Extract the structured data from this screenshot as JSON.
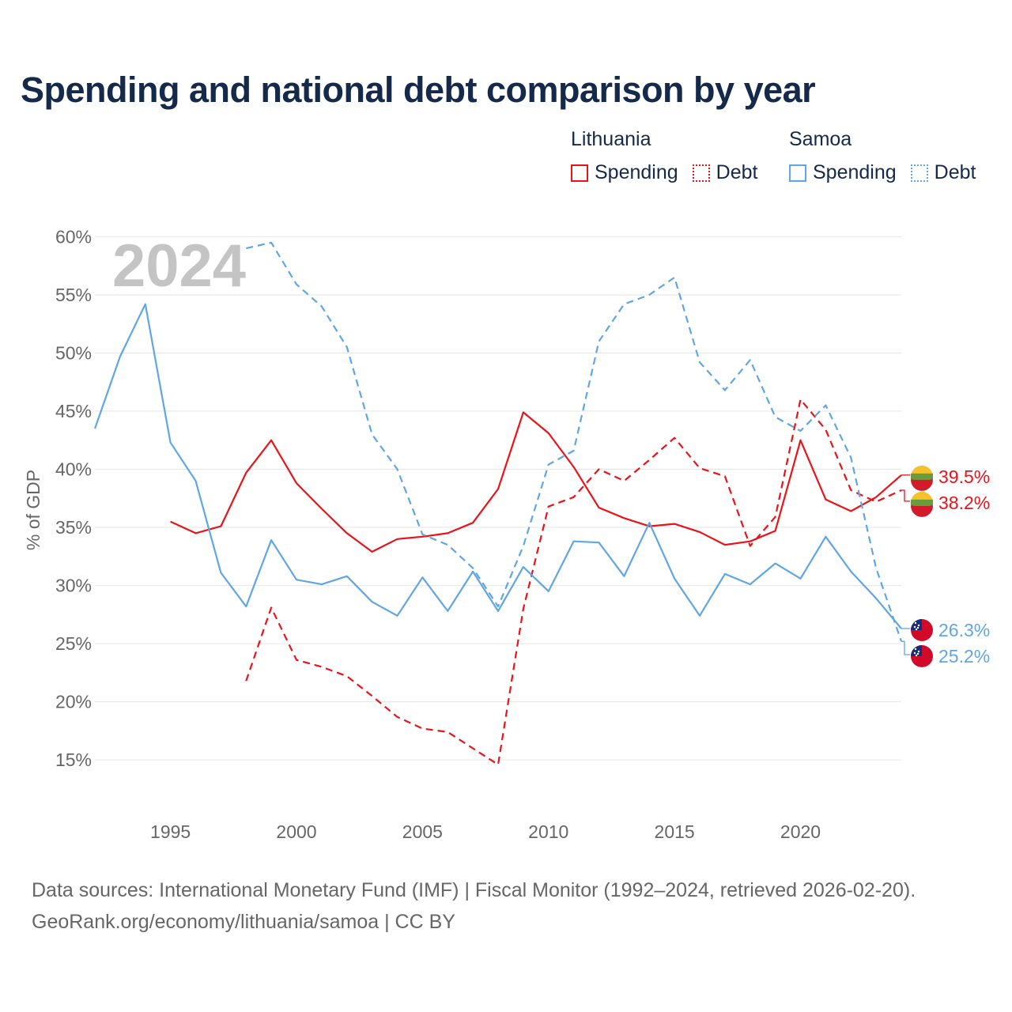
{
  "title": "Spending and national debt comparison by year",
  "legend": {
    "lithuania": {
      "country": "Lithuania",
      "spending": "Spending",
      "debt": "Debt"
    },
    "samoa": {
      "country": "Samoa",
      "spending": "Spending",
      "debt": "Debt"
    }
  },
  "footer": {
    "line1": "Data sources: International Monetary Fund (IMF) | Fiscal Monitor (1992–2024, retrieved 2026-02-20).",
    "line2": "GeoRank.org/economy/lithuania/samoa | CC BY"
  },
  "colors": {
    "lithuania": "#e8141a",
    "samoa": "#60a6e4",
    "grid": "#e6e6e6",
    "year_watermark": "#c4c4c4"
  },
  "chart_data": {
    "type": "line",
    "title": "Spending and national debt comparison by year",
    "ylabel": "% of GDP",
    "xlabel": "",
    "xlim": [
      1992,
      2024
    ],
    "ylim": [
      11,
      62
    ],
    "x_ticks": [
      1995,
      2000,
      2005,
      2010,
      2015,
      2020
    ],
    "y_ticks": [
      15,
      20,
      25,
      30,
      35,
      40,
      45,
      50,
      55,
      60
    ],
    "y_tick_labels": [
      "15%",
      "20%",
      "25%",
      "30%",
      "35%",
      "40%",
      "45%",
      "50%",
      "55%",
      "60%"
    ],
    "year_label": "2024",
    "series": [
      {
        "name": "Lithuania Spending",
        "country": "lithuania",
        "style": "solid",
        "x": [
          1995,
          1996,
          1997,
          1998,
          1999,
          2000,
          2001,
          2002,
          2003,
          2004,
          2005,
          2006,
          2007,
          2008,
          2009,
          2010,
          2011,
          2012,
          2013,
          2014,
          2015,
          2016,
          2017,
          2018,
          2019,
          2020,
          2021,
          2022,
          2023,
          2024
        ],
        "values": [
          35.5,
          34.5,
          35.1,
          39.7,
          42.5,
          38.8,
          36.6,
          34.5,
          32.9,
          34.0,
          34.2,
          34.5,
          35.4,
          38.3,
          44.9,
          43.1,
          40.2,
          36.7,
          35.8,
          35.1,
          35.3,
          34.6,
          33.5,
          33.8,
          34.7,
          42.5,
          37.4,
          36.4,
          37.6,
          39.5
        ],
        "end_label": "39.5%"
      },
      {
        "name": "Lithuania Debt",
        "country": "lithuania",
        "style": "dashed",
        "x": [
          1998,
          1999,
          2000,
          2001,
          2002,
          2003,
          2004,
          2005,
          2006,
          2007,
          2008,
          2009,
          2010,
          2011,
          2012,
          2013,
          2014,
          2015,
          2016,
          2017,
          2018,
          2019,
          2020,
          2021,
          2022,
          2023,
          2024
        ],
        "values": [
          21.8,
          28.1,
          23.6,
          23.0,
          22.2,
          20.5,
          18.7,
          17.7,
          17.4,
          16.0,
          14.6,
          28.0,
          36.8,
          37.6,
          40.0,
          39.0,
          40.8,
          42.7,
          40.1,
          39.4,
          33.4,
          35.9,
          46.0,
          43.4,
          38.2,
          37.2,
          38.2
        ],
        "end_label": "38.2%"
      },
      {
        "name": "Samoa Spending",
        "country": "samoa",
        "style": "solid",
        "x": [
          1992,
          1993,
          1994,
          1995,
          1996,
          1997,
          1998,
          1999,
          2000,
          2001,
          2002,
          2003,
          2004,
          2005,
          2006,
          2007,
          2008,
          2009,
          2010,
          2011,
          2012,
          2013,
          2014,
          2015,
          2016,
          2017,
          2018,
          2019,
          2020,
          2021,
          2022,
          2023,
          2024
        ],
        "values": [
          43.5,
          49.7,
          54.2,
          42.3,
          39.0,
          31.1,
          28.2,
          33.9,
          30.5,
          30.1,
          30.8,
          28.6,
          27.4,
          30.7,
          27.8,
          31.2,
          27.8,
          31.6,
          29.5,
          33.8,
          33.7,
          30.8,
          35.4,
          30.6,
          27.4,
          31.0,
          30.1,
          31.9,
          30.6,
          34.2,
          31.2,
          28.9,
          26.3
        ],
        "end_label": "26.3%"
      },
      {
        "name": "Samoa Debt",
        "country": "samoa",
        "style": "dashed",
        "x": [
          1998,
          1999,
          2000,
          2001,
          2002,
          2003,
          2004,
          2005,
          2006,
          2007,
          2008,
          2009,
          2010,
          2011,
          2012,
          2013,
          2014,
          2015,
          2016,
          2017,
          2018,
          2019,
          2020,
          2021,
          2022,
          2023,
          2024
        ],
        "values": [
          59.0,
          59.5,
          55.9,
          54.0,
          50.5,
          43.0,
          40.0,
          34.4,
          33.5,
          31.5,
          28.2,
          33.4,
          40.4,
          41.6,
          51.0,
          54.2,
          55.0,
          56.5,
          49.2,
          46.8,
          49.4,
          44.5,
          43.3,
          45.5,
          41.0,
          31.5,
          25.2
        ],
        "end_label": "25.2%"
      }
    ]
  }
}
